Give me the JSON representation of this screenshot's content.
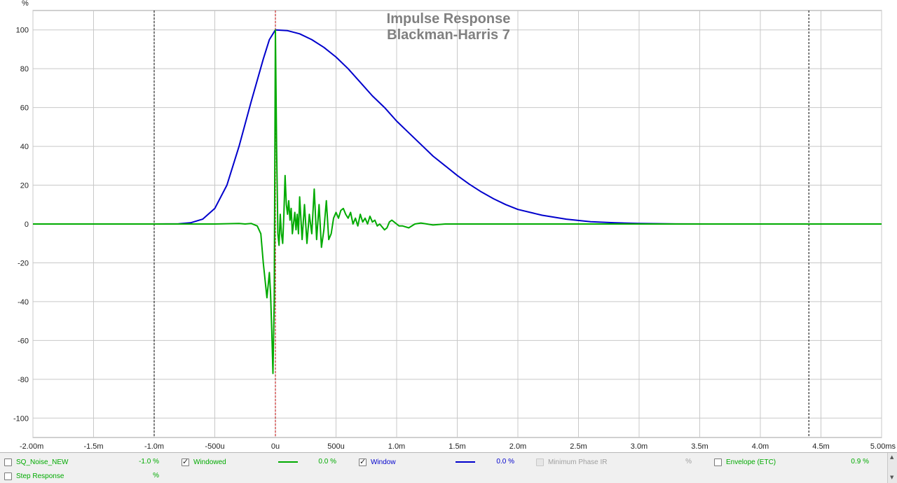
{
  "chart_data": {
    "type": "line",
    "title": "Impulse Response",
    "subtitle": "Blackman-Harris 7",
    "y_unit": "%",
    "xlim": [
      -2.0,
      5.0
    ],
    "ylim": [
      -110,
      110
    ],
    "x_ticks": [
      {
        "value": -2.0,
        "label": "-2.00m"
      },
      {
        "value": -1.5,
        "label": "-1.5m"
      },
      {
        "value": -1.0,
        "label": "-1.0m"
      },
      {
        "value": -0.5,
        "label": "-500u"
      },
      {
        "value": 0.0,
        "label": "0u"
      },
      {
        "value": 0.5,
        "label": "500u"
      },
      {
        "value": 1.0,
        "label": "1.0m"
      },
      {
        "value": 1.5,
        "label": "1.5m"
      },
      {
        "value": 2.0,
        "label": "2.0m"
      },
      {
        "value": 2.5,
        "label": "2.5m"
      },
      {
        "value": 3.0,
        "label": "3.0m"
      },
      {
        "value": 3.5,
        "label": "3.5m"
      },
      {
        "value": 4.0,
        "label": "4.0m"
      },
      {
        "value": 4.5,
        "label": "4.5m"
      },
      {
        "value": 5.0,
        "label": "5.00ms"
      }
    ],
    "y_ticks": [
      100,
      80,
      60,
      40,
      20,
      0,
      -20,
      -40,
      -60,
      -80,
      -100
    ],
    "grid": true,
    "markers": [
      {
        "x": -1.0,
        "color": "#000000"
      },
      {
        "x": 0.0,
        "color": "#c00000"
      },
      {
        "x": 4.4,
        "color": "#000000"
      }
    ],
    "series": [
      {
        "name": "Window",
        "color": "#0000cc",
        "points": [
          [
            -2.0,
            0
          ],
          [
            -1.0,
            0
          ],
          [
            -0.8,
            0.1
          ],
          [
            -0.7,
            0.6
          ],
          [
            -0.6,
            2.5
          ],
          [
            -0.5,
            8
          ],
          [
            -0.4,
            20
          ],
          [
            -0.3,
            40
          ],
          [
            -0.2,
            63
          ],
          [
            -0.1,
            85
          ],
          [
            -0.05,
            95
          ],
          [
            0,
            100
          ],
          [
            0.1,
            99.6
          ],
          [
            0.2,
            98
          ],
          [
            0.3,
            95
          ],
          [
            0.4,
            91
          ],
          [
            0.5,
            86
          ],
          [
            0.6,
            80
          ],
          [
            0.7,
            73
          ],
          [
            0.8,
            66
          ],
          [
            0.9,
            60
          ],
          [
            1.0,
            53
          ],
          [
            1.1,
            47
          ],
          [
            1.2,
            41
          ],
          [
            1.3,
            35
          ],
          [
            1.4,
            30
          ],
          [
            1.5,
            25
          ],
          [
            1.6,
            20.5
          ],
          [
            1.7,
            16.5
          ],
          [
            1.8,
            13
          ],
          [
            1.9,
            10
          ],
          [
            2.0,
            7.5
          ],
          [
            2.2,
            4.5
          ],
          [
            2.4,
            2.5
          ],
          [
            2.6,
            1.2
          ],
          [
            2.8,
            0.6
          ],
          [
            3.0,
            0.25
          ],
          [
            3.3,
            0.05
          ],
          [
            3.6,
            0
          ],
          [
            5.0,
            0
          ]
        ]
      },
      {
        "name": "Windowed",
        "color": "#00aa00",
        "points": [
          [
            -2.0,
            0
          ],
          [
            -0.5,
            0
          ],
          [
            -0.3,
            0.3
          ],
          [
            -0.25,
            0
          ],
          [
            -0.2,
            0.3
          ],
          [
            -0.15,
            -1
          ],
          [
            -0.12,
            -5
          ],
          [
            -0.1,
            -20
          ],
          [
            -0.07,
            -38
          ],
          [
            -0.05,
            -25
          ],
          [
            -0.04,
            -36
          ],
          [
            -0.03,
            -55
          ],
          [
            -0.02,
            -77
          ],
          [
            -0.01,
            -40
          ],
          [
            0,
            100
          ],
          [
            0.01,
            40
          ],
          [
            0.02,
            -5
          ],
          [
            0.03,
            -11
          ],
          [
            0.04,
            5
          ],
          [
            0.05,
            -5
          ],
          [
            0.06,
            -10
          ],
          [
            0.07,
            5
          ],
          [
            0.08,
            25
          ],
          [
            0.09,
            10
          ],
          [
            0.1,
            5
          ],
          [
            0.11,
            12
          ],
          [
            0.12,
            2
          ],
          [
            0.13,
            8
          ],
          [
            0.14,
            -5
          ],
          [
            0.16,
            6
          ],
          [
            0.17,
            -3
          ],
          [
            0.18,
            5
          ],
          [
            0.19,
            -5
          ],
          [
            0.2,
            14
          ],
          [
            0.22,
            -8
          ],
          [
            0.24,
            10
          ],
          [
            0.26,
            -10
          ],
          [
            0.28,
            5
          ],
          [
            0.3,
            -5
          ],
          [
            0.32,
            18
          ],
          [
            0.34,
            -8
          ],
          [
            0.36,
            10
          ],
          [
            0.38,
            -12
          ],
          [
            0.4,
            -3
          ],
          [
            0.42,
            12
          ],
          [
            0.44,
            -8
          ],
          [
            0.46,
            -5
          ],
          [
            0.48,
            3
          ],
          [
            0.5,
            6
          ],
          [
            0.52,
            3
          ],
          [
            0.54,
            7
          ],
          [
            0.56,
            8
          ],
          [
            0.58,
            5
          ],
          [
            0.6,
            3
          ],
          [
            0.62,
            6
          ],
          [
            0.64,
            0
          ],
          [
            0.66,
            3
          ],
          [
            0.68,
            -1
          ],
          [
            0.7,
            5
          ],
          [
            0.72,
            1
          ],
          [
            0.74,
            3
          ],
          [
            0.76,
            0
          ],
          [
            0.78,
            4
          ],
          [
            0.8,
            1
          ],
          [
            0.82,
            2
          ],
          [
            0.84,
            -1
          ],
          [
            0.86,
            0
          ],
          [
            0.9,
            -3
          ],
          [
            0.92,
            -2
          ],
          [
            0.94,
            1
          ],
          [
            0.96,
            2
          ],
          [
            0.98,
            1
          ],
          [
            1.0,
            0
          ],
          [
            1.02,
            -1
          ],
          [
            1.05,
            -1
          ],
          [
            1.1,
            -2
          ],
          [
            1.15,
            0
          ],
          [
            1.2,
            0.5
          ],
          [
            1.3,
            -0.5
          ],
          [
            1.4,
            0
          ],
          [
            1.5,
            0
          ],
          [
            1.7,
            0
          ],
          [
            2.0,
            0
          ],
          [
            5.0,
            0
          ]
        ]
      }
    ]
  },
  "legend": {
    "row1": [
      {
        "label": "SQ_Noise_NEW",
        "value": "-1.0 %",
        "checked": false,
        "color": "#00aa00"
      },
      {
        "label": "Windowed",
        "value": "0.0 %",
        "checked": true,
        "color": "#00aa00"
      },
      {
        "label": "Window",
        "value": "0.0 %",
        "checked": true,
        "color": "#0000cc"
      },
      {
        "label": "Minimum Phase IR",
        "value": "%",
        "checked": false,
        "color": "#a0a0a0"
      },
      {
        "label": "Envelope (ETC)",
        "value": "0.9 %",
        "checked": false,
        "color": "#00aa00"
      }
    ],
    "row2": [
      {
        "label": "Step Response",
        "value": "%",
        "checked": false,
        "color": "#00aa00"
      }
    ]
  }
}
